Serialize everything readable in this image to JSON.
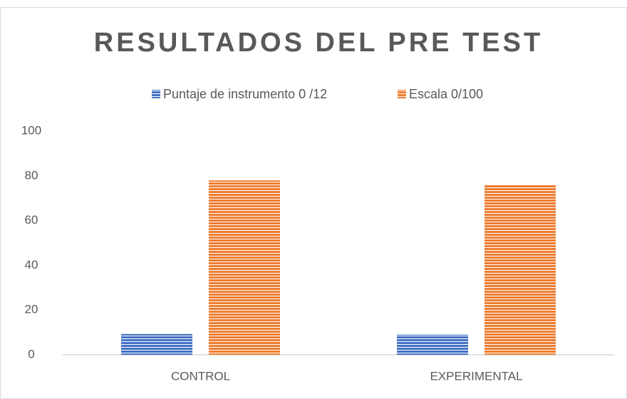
{
  "chart_data": {
    "type": "bar",
    "title": "RESULTADOS DEL PRE TEST",
    "categories": [
      "CONTROL",
      "EXPERIMENTAL"
    ],
    "series": [
      {
        "name": "Puntaje de instrumento 0 /12",
        "color": "#4472c4",
        "values": [
          9.3,
          9.0
        ]
      },
      {
        "name": "Escala 0/100",
        "color": "#ed7d31",
        "values": [
          78,
          75.8
        ]
      }
    ],
    "ylim": [
      0,
      100
    ],
    "yticks": [
      0,
      20,
      40,
      60,
      80,
      100
    ],
    "grid": false,
    "legend": "top"
  }
}
